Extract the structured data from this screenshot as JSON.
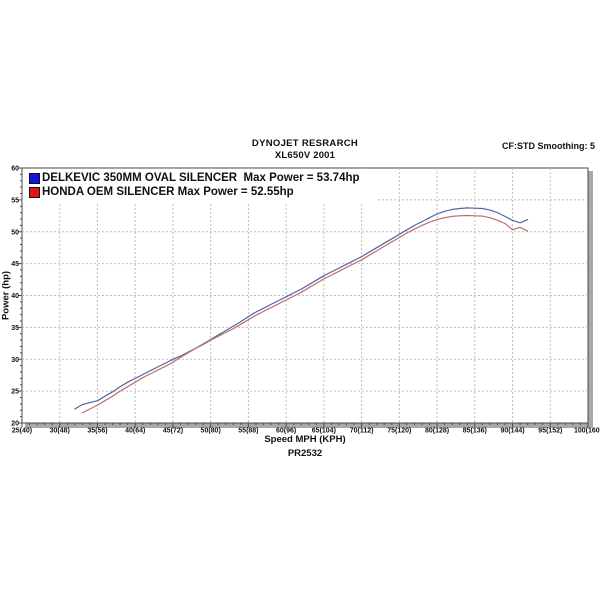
{
  "header": {
    "title": "DYNOJET RESRARCH",
    "subtitle": "XL650V 2001",
    "smoothing": "CF:STD Smoothing: 5"
  },
  "footer": {
    "xaxis_title": "Speed MPH (KPH)",
    "run_id": "PR2532"
  },
  "yaxis_title": "Power (hp)",
  "colors": {
    "grid": "#bcbcbc",
    "frame": "#4a4a4a",
    "shadow": "#a8a8a8",
    "text": "#111111",
    "background": "#ffffff"
  },
  "chart_data": {
    "type": "line",
    "title": "DYNOJET RESRARCH",
    "subtitle": "XL650V 2001",
    "xlabel": "Speed MPH (KPH)",
    "ylabel": "Power (hp)",
    "xlim": [
      25,
      100
    ],
    "ylim": [
      20,
      60
    ],
    "grid": true,
    "legend_position": "top-left",
    "x_ticks": [
      {
        "v": 25,
        "label": "25(40)"
      },
      {
        "v": 30,
        "label": "30(48)"
      },
      {
        "v": 35,
        "label": "35(56)"
      },
      {
        "v": 40,
        "label": "40(64)"
      },
      {
        "v": 45,
        "label": "45(72)"
      },
      {
        "v": 50,
        "label": "50(80)"
      },
      {
        "v": 55,
        "label": "55(88)"
      },
      {
        "v": 60,
        "label": "60(96)"
      },
      {
        "v": 65,
        "label": "65(104)"
      },
      {
        "v": 70,
        "label": "70(112)"
      },
      {
        "v": 75,
        "label": "75(120)"
      },
      {
        "v": 80,
        "label": "80(128)"
      },
      {
        "v": 85,
        "label": "85(136)"
      },
      {
        "v": 90,
        "label": "90(144)"
      },
      {
        "v": 95,
        "label": "95(152)"
      },
      {
        "v": 100,
        "label": "100(160)"
      }
    ],
    "y_ticks": [
      {
        "v": 20,
        "label": "20"
      },
      {
        "v": 25,
        "label": "25"
      },
      {
        "v": 30,
        "label": "30"
      },
      {
        "v": 35,
        "label": "35"
      },
      {
        "v": 40,
        "label": "40"
      },
      {
        "v": 45,
        "label": "45"
      },
      {
        "v": 50,
        "label": "50"
      },
      {
        "v": 55,
        "label": "55"
      },
      {
        "v": 60,
        "label": "60"
      }
    ],
    "series": [
      {
        "name": "DELKEVIC 350MM OVAL SILENCER  Max Power = 53.74hp",
        "max_power_hp": 53.74,
        "color": "#5565a5",
        "legend_color": "#1414e0",
        "x": [
          32,
          33,
          34,
          35,
          36,
          37,
          38,
          39,
          40,
          41,
          42,
          43,
          44,
          45,
          46,
          47,
          48,
          49,
          50,
          51,
          52,
          53,
          54,
          55,
          56,
          57,
          58,
          59,
          60,
          61,
          62,
          63,
          64,
          65,
          66,
          67,
          68,
          69,
          70,
          71,
          72,
          73,
          74,
          75,
          76,
          77,
          78,
          79,
          80,
          81,
          82,
          83,
          84,
          85,
          86,
          87,
          88,
          89,
          90,
          91,
          92
        ],
        "y": [
          22.2,
          22.9,
          23.2,
          23.5,
          24.2,
          24.9,
          25.7,
          26.4,
          27.0,
          27.6,
          28.2,
          28.8,
          29.4,
          30.0,
          30.5,
          31.1,
          31.7,
          32.4,
          33.1,
          33.8,
          34.5,
          35.2,
          35.9,
          36.7,
          37.4,
          38.0,
          38.6,
          39.2,
          39.8,
          40.4,
          41.0,
          41.7,
          42.4,
          43.1,
          43.7,
          44.3,
          44.9,
          45.5,
          46.1,
          46.8,
          47.5,
          48.2,
          48.9,
          49.6,
          50.3,
          51.0,
          51.6,
          52.2,
          52.8,
          53.2,
          53.5,
          53.65,
          53.74,
          53.7,
          53.65,
          53.4,
          53.0,
          52.4,
          51.8,
          51.4,
          51.9
        ]
      },
      {
        "name": "HONDA OEM SILENCER Max Power = 52.55hp",
        "max_power_hp": 52.55,
        "color": "#bb7066",
        "legend_color": "#e01414",
        "x": [
          33,
          34,
          35,
          36,
          37,
          38,
          39,
          40,
          41,
          42,
          43,
          44,
          45,
          46,
          47,
          48,
          49,
          50,
          51,
          52,
          53,
          54,
          55,
          56,
          57,
          58,
          59,
          60,
          61,
          62,
          63,
          64,
          65,
          66,
          67,
          68,
          69,
          70,
          71,
          72,
          73,
          74,
          75,
          76,
          77,
          78,
          79,
          80,
          81,
          82,
          83,
          84,
          85,
          86,
          87,
          88,
          89,
          90,
          91,
          92
        ],
        "y": [
          21.6,
          22.2,
          22.8,
          23.5,
          24.2,
          25.0,
          25.7,
          26.4,
          27.1,
          27.7,
          28.3,
          28.9,
          29.5,
          30.3,
          31.0,
          31.7,
          32.3,
          33.0,
          33.6,
          34.2,
          34.8,
          35.5,
          36.2,
          36.9,
          37.5,
          38.1,
          38.7,
          39.3,
          39.9,
          40.5,
          41.2,
          41.9,
          42.6,
          43.2,
          43.8,
          44.4,
          45.0,
          45.6,
          46.3,
          47.0,
          47.7,
          48.4,
          49.1,
          49.8,
          50.4,
          51.0,
          51.5,
          51.9,
          52.2,
          52.4,
          52.5,
          52.55,
          52.5,
          52.45,
          52.2,
          51.8,
          51.3,
          50.3,
          50.7,
          50.1
        ]
      }
    ]
  }
}
